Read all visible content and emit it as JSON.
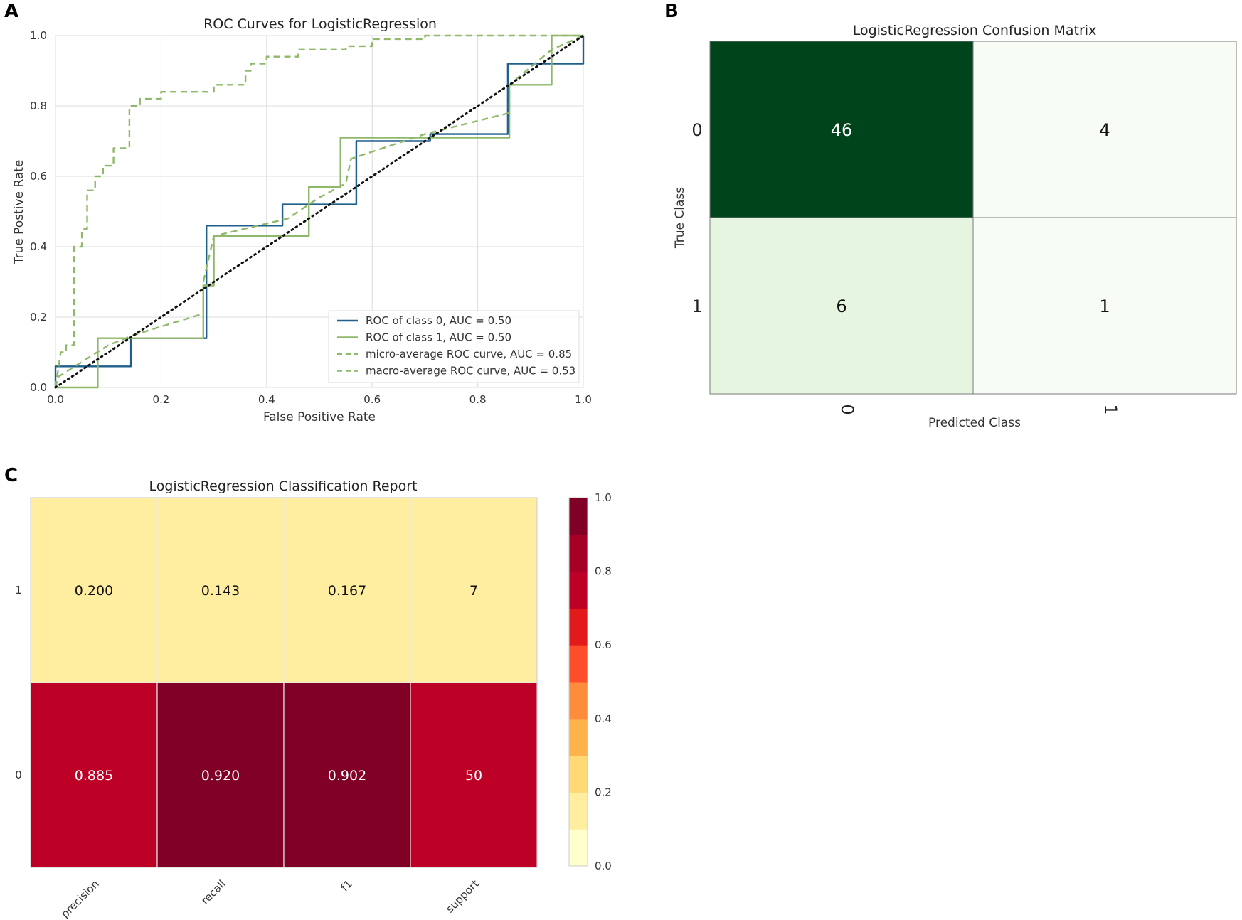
{
  "chart_data": [
    {
      "panel": "A",
      "type": "line",
      "title": "ROC Curves for LogisticRegression",
      "xlabel": "False Positive Rate",
      "ylabel": "True Postive Rate",
      "xlim": [
        0,
        1
      ],
      "ylim": [
        0,
        1
      ],
      "xticks": [
        "0.0",
        "0.2",
        "0.4",
        "0.6",
        "0.8",
        "1.0"
      ],
      "yticks": [
        "0.0",
        "0.2",
        "0.4",
        "0.6",
        "0.8",
        "1.0"
      ],
      "grid": true,
      "legend_position": "bottom-right",
      "series": [
        {
          "name": "ROC of class 0, AUC = 0.50",
          "color": "#1f5f8b",
          "style": "solid",
          "x": [
            0,
            0,
            0.143,
            0.143,
            0.286,
            0.286,
            0.43,
            0.43,
            0.57,
            0.57,
            0.71,
            0.71,
            0.857,
            0.857,
            1.0,
            1.0
          ],
          "y": [
            0,
            0.06,
            0.06,
            0.14,
            0.14,
            0.46,
            0.46,
            0.52,
            0.52,
            0.7,
            0.7,
            0.72,
            0.72,
            0.92,
            0.92,
            1.0
          ]
        },
        {
          "name": "ROC of class 1, AUC = 0.50",
          "color": "#8fb86a",
          "style": "solid",
          "x": [
            0,
            0.08,
            0.08,
            0.28,
            0.28,
            0.3,
            0.3,
            0.48,
            0.48,
            0.54,
            0.54,
            0.86,
            0.86,
            0.94,
            0.94,
            1.0
          ],
          "y": [
            0,
            0,
            0.14,
            0.14,
            0.29,
            0.29,
            0.43,
            0.43,
            0.57,
            0.57,
            0.71,
            0.71,
            0.86,
            0.86,
            1.0,
            1.0
          ]
        },
        {
          "name": "micro-average ROC curve, AUC = 0.85",
          "color": "#8fb86a",
          "style": "dashed",
          "x": [
            0,
            0.01,
            0.02,
            0.02,
            0.035,
            0.035,
            0.05,
            0.05,
            0.06,
            0.06,
            0.075,
            0.075,
            0.09,
            0.09,
            0.11,
            0.11,
            0.14,
            0.14,
            0.16,
            0.16,
            0.2,
            0.2,
            0.25,
            0.3,
            0.3,
            0.36,
            0.36,
            0.37,
            0.37,
            0.4,
            0.4,
            0.46,
            0.46,
            0.55,
            0.55,
            0.6,
            0.6,
            0.7,
            0.7,
            0.9,
            0.9,
            1.0
          ],
          "y": [
            0,
            0.1,
            0.1,
            0.12,
            0.12,
            0.4,
            0.4,
            0.45,
            0.45,
            0.56,
            0.56,
            0.6,
            0.6,
            0.63,
            0.63,
            0.68,
            0.68,
            0.8,
            0.8,
            0.82,
            0.82,
            0.84,
            0.84,
            0.84,
            0.86,
            0.86,
            0.9,
            0.9,
            0.92,
            0.92,
            0.94,
            0.94,
            0.96,
            0.96,
            0.97,
            0.97,
            0.99,
            0.99,
            1.0,
            1.0,
            1.0,
            1.0
          ]
        },
        {
          "name": "macro-average ROC curve, AUC = 0.53",
          "color": "#8fb86a",
          "style": "dashed",
          "x": [
            0,
            0.005,
            0.1,
            0.15,
            0.28,
            0.28,
            0.3,
            0.44,
            0.5,
            0.55,
            0.56,
            0.7,
            0.86,
            0.86,
            0.94,
            1.0
          ],
          "y": [
            0,
            0.03,
            0.12,
            0.15,
            0.21,
            0.3,
            0.43,
            0.48,
            0.54,
            0.58,
            0.65,
            0.72,
            0.78,
            0.86,
            0.96,
            1.0
          ]
        },
        {
          "name": "chance",
          "color": "#111111",
          "style": "dotted",
          "x": [
            0,
            1
          ],
          "y": [
            0,
            1
          ]
        }
      ]
    },
    {
      "panel": "B",
      "type": "heatmap",
      "title": "LogisticRegression Confusion Matrix",
      "xlabel": "Predicted Class",
      "ylabel": "True Class",
      "row_labels": [
        "0",
        "1"
      ],
      "col_labels": [
        "0",
        "1"
      ],
      "values": [
        [
          46,
          4
        ],
        [
          6,
          1
        ]
      ],
      "display": [
        [
          "46",
          "4"
        ],
        [
          "6",
          "1"
        ]
      ],
      "colors": [
        [
          "#00441b",
          "#f7fcf5"
        ],
        [
          "#e5f5e0",
          "#f7fcf5"
        ]
      ]
    },
    {
      "panel": "C",
      "type": "heatmap",
      "title": "LogisticRegression Classification Report",
      "row_labels": [
        "1",
        "0"
      ],
      "col_labels": [
        "precision",
        "recall",
        "f1",
        "support"
      ],
      "values": [
        [
          0.2,
          0.143,
          0.167,
          7
        ],
        [
          0.885,
          0.92,
          0.902,
          50
        ]
      ],
      "display": [
        [
          "0.200",
          "0.143",
          "0.167",
          "7"
        ],
        [
          "0.885",
          "0.920",
          "0.902",
          "50"
        ]
      ],
      "colors": [
        [
          "#ffeda0",
          "#ffeda0",
          "#ffeda0",
          "#ffeda0"
        ],
        [
          "#bd0026",
          "#800026",
          "#800026",
          "#bd0026"
        ]
      ],
      "colorbar": {
        "range": [
          0,
          1
        ],
        "ticks": [
          "0.0",
          "0.2",
          "0.4",
          "0.6",
          "0.8",
          "1.0"
        ],
        "colors": [
          "#ffffcc",
          "#ffeda0",
          "#fed976",
          "#feb24c",
          "#fd8d3c",
          "#fc4e2a",
          "#e31a1c",
          "#bd0026",
          "#a50026",
          "#800026"
        ]
      }
    }
  ],
  "panel_labels": [
    "A",
    "B",
    "C"
  ]
}
